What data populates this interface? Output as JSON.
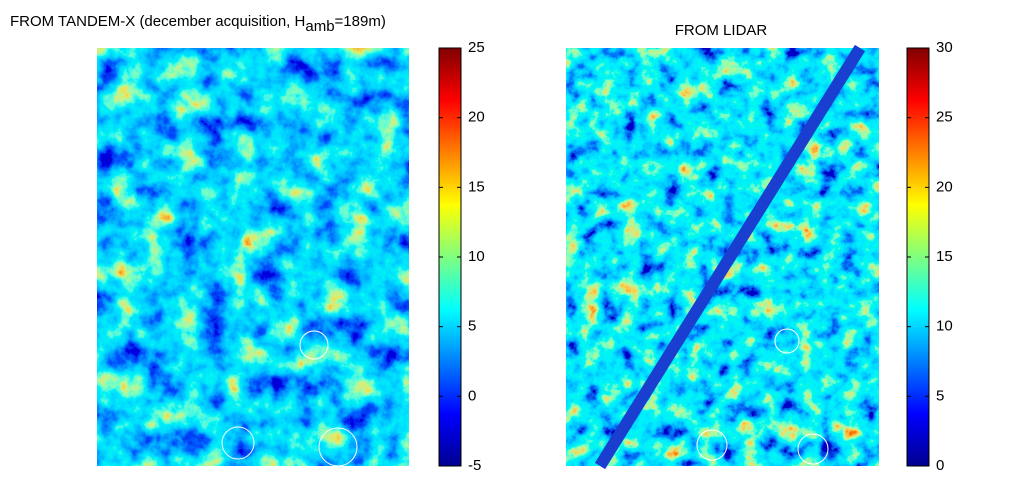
{
  "chart_data": [
    {
      "type": "image",
      "title": "FROM TANDEM-X (december acquisition, H",
      "title_subscript": "amb",
      "title_suffix": "=189m)",
      "colormap": "jet",
      "clim": [
        -5,
        25
      ],
      "cticks": [
        -5,
        0,
        5,
        10,
        15,
        20,
        25
      ]
    },
    {
      "type": "image",
      "title": "FROM LIDAR",
      "colormap": "jet",
      "clim": [
        0,
        30
      ],
      "cticks": [
        0,
        5,
        10,
        15,
        20,
        25,
        30
      ]
    }
  ]
}
